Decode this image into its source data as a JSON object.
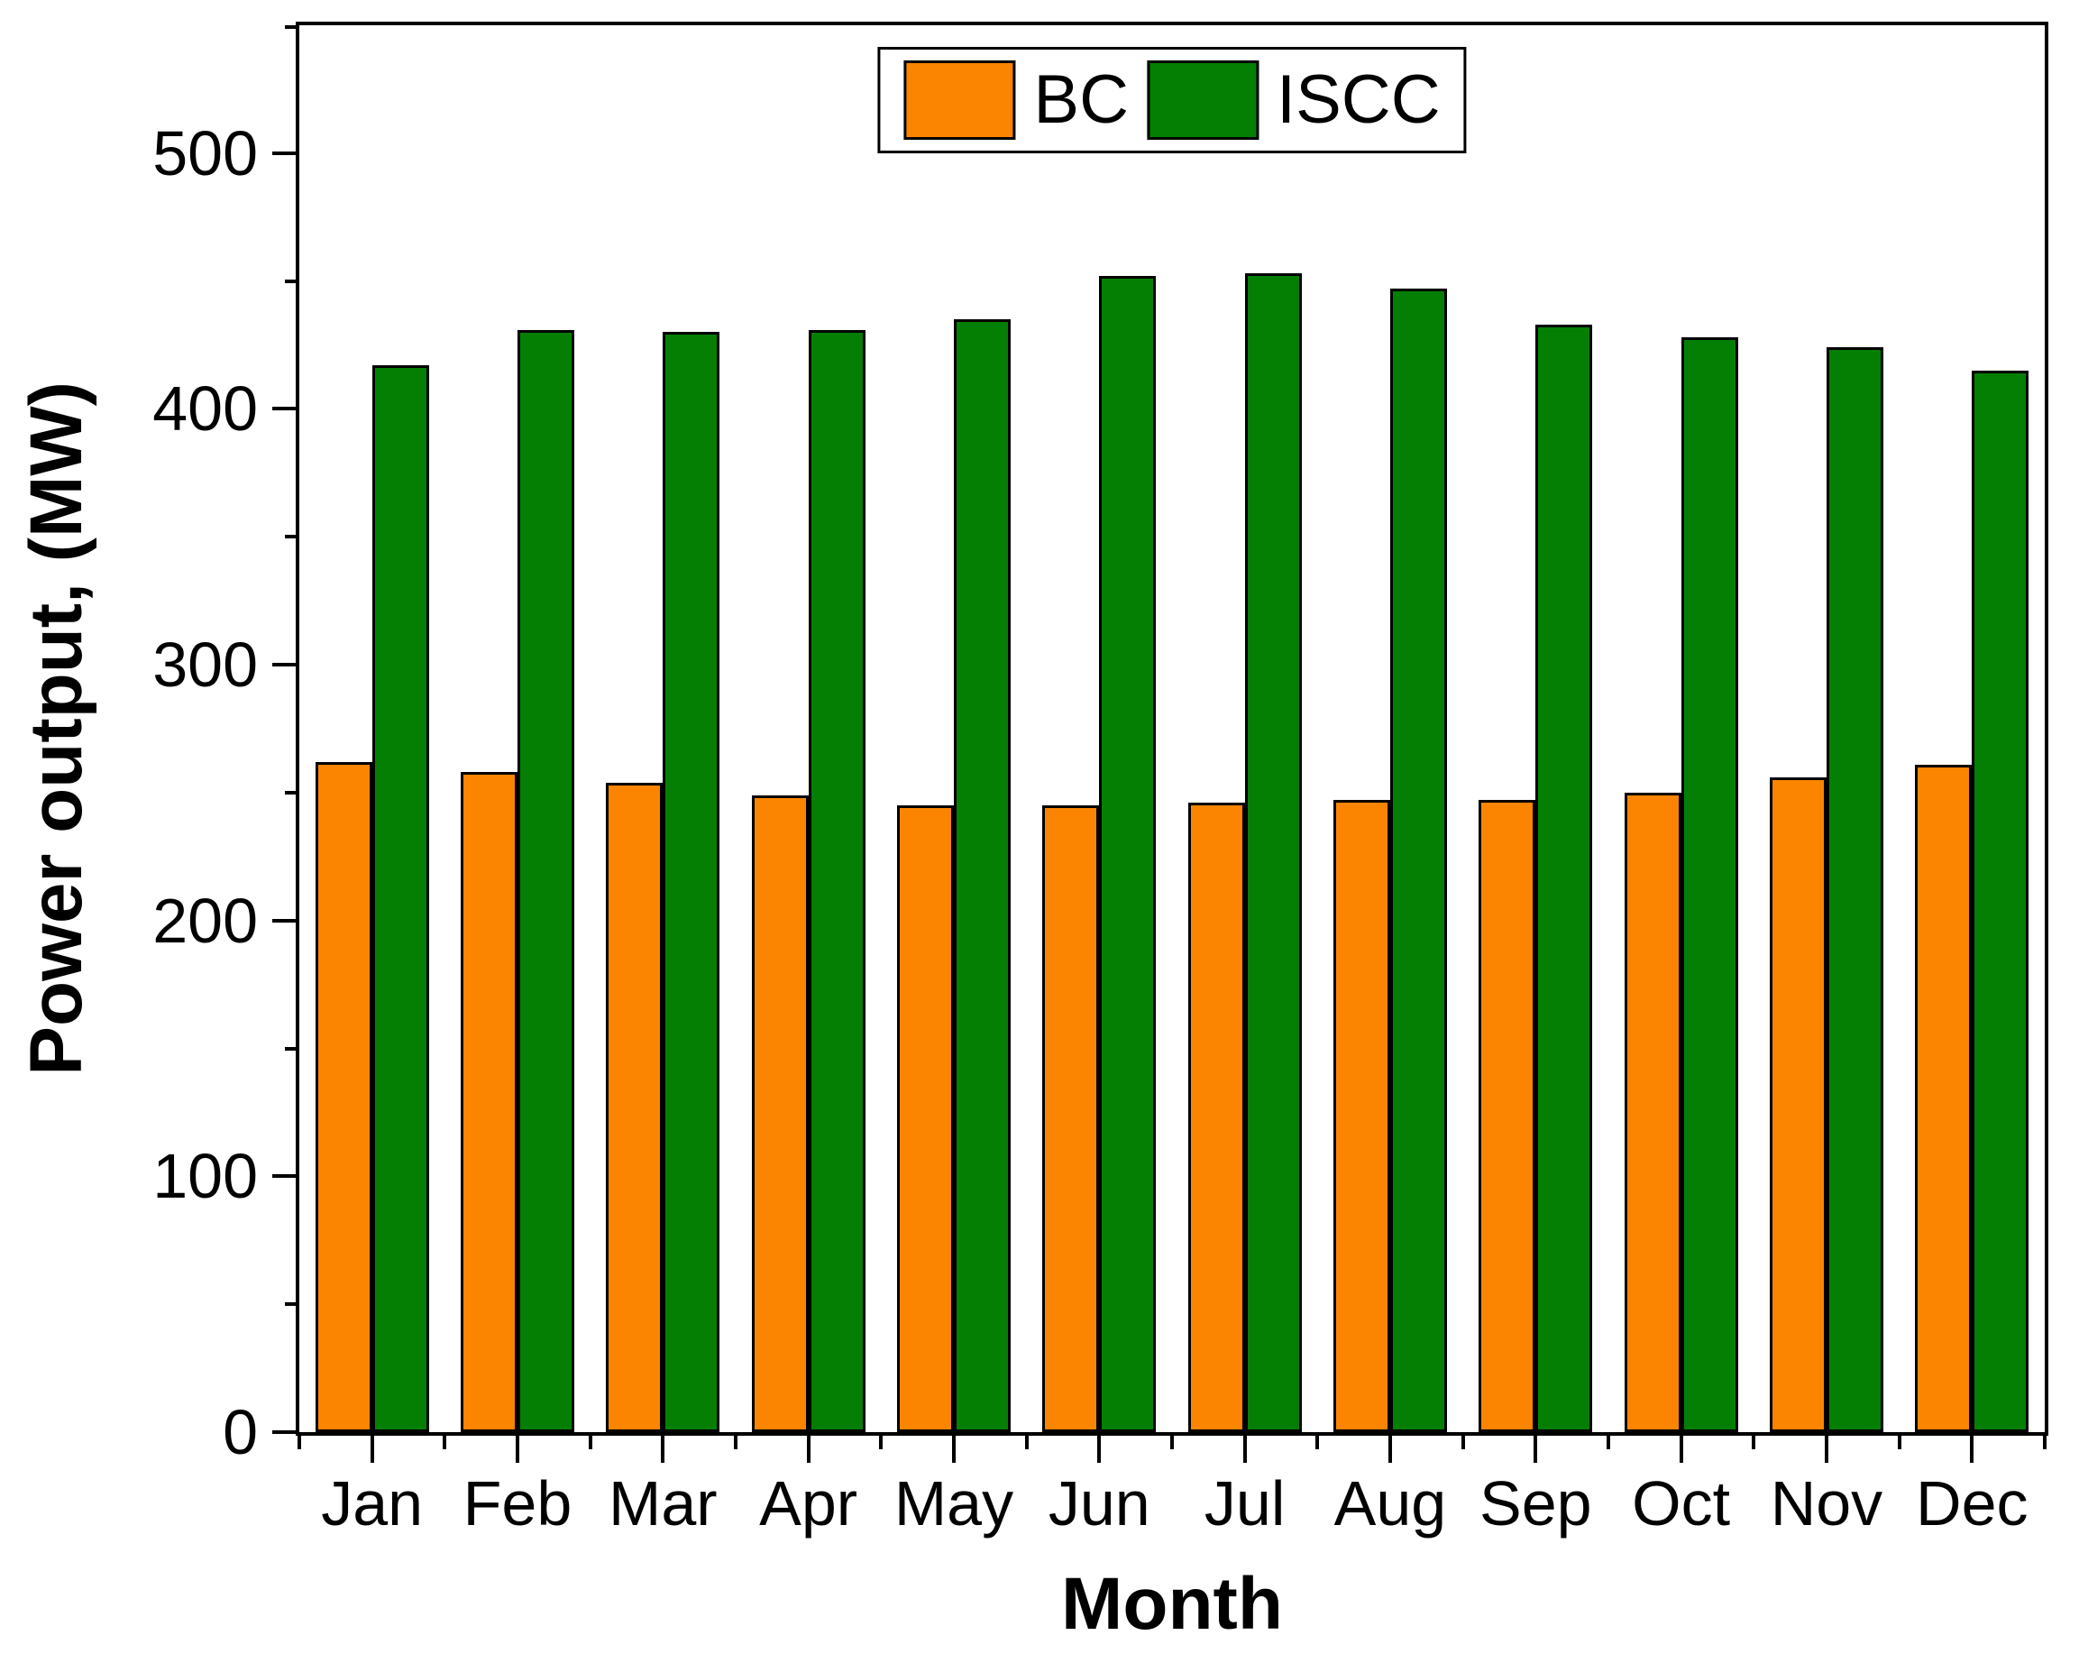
{
  "figure": {
    "xlabel": "Month",
    "ylabel": "Power output, (MW)"
  },
  "chart_data": {
    "type": "bar",
    "title": "",
    "xlabel": "Month",
    "ylabel": "Power output, (MW)",
    "categories": [
      "Jan",
      "Feb",
      "Mar",
      "Apr",
      "May",
      "Jun",
      "Jul",
      "Aug",
      "Sep",
      "Oct",
      "Nov",
      "Dec"
    ],
    "series": [
      {
        "name": "BC",
        "color": "#fb8500",
        "values": [
          262,
          258,
          254,
          249,
          245,
          245,
          246,
          247,
          247,
          250,
          256,
          261
        ]
      },
      {
        "name": "ISCC",
        "color": "#047f04",
        "values": [
          417,
          431,
          430,
          431,
          435,
          452,
          453,
          447,
          433,
          428,
          424,
          415
        ]
      }
    ],
    "ylim": [
      0,
      550
    ],
    "yticks_major": [
      0,
      100,
      200,
      300,
      400,
      500
    ],
    "yticks_minor": [
      50,
      150,
      250,
      350,
      450,
      550
    ],
    "bar_edge_color": "#000000",
    "grid": false,
    "legend_position": "top-center"
  }
}
